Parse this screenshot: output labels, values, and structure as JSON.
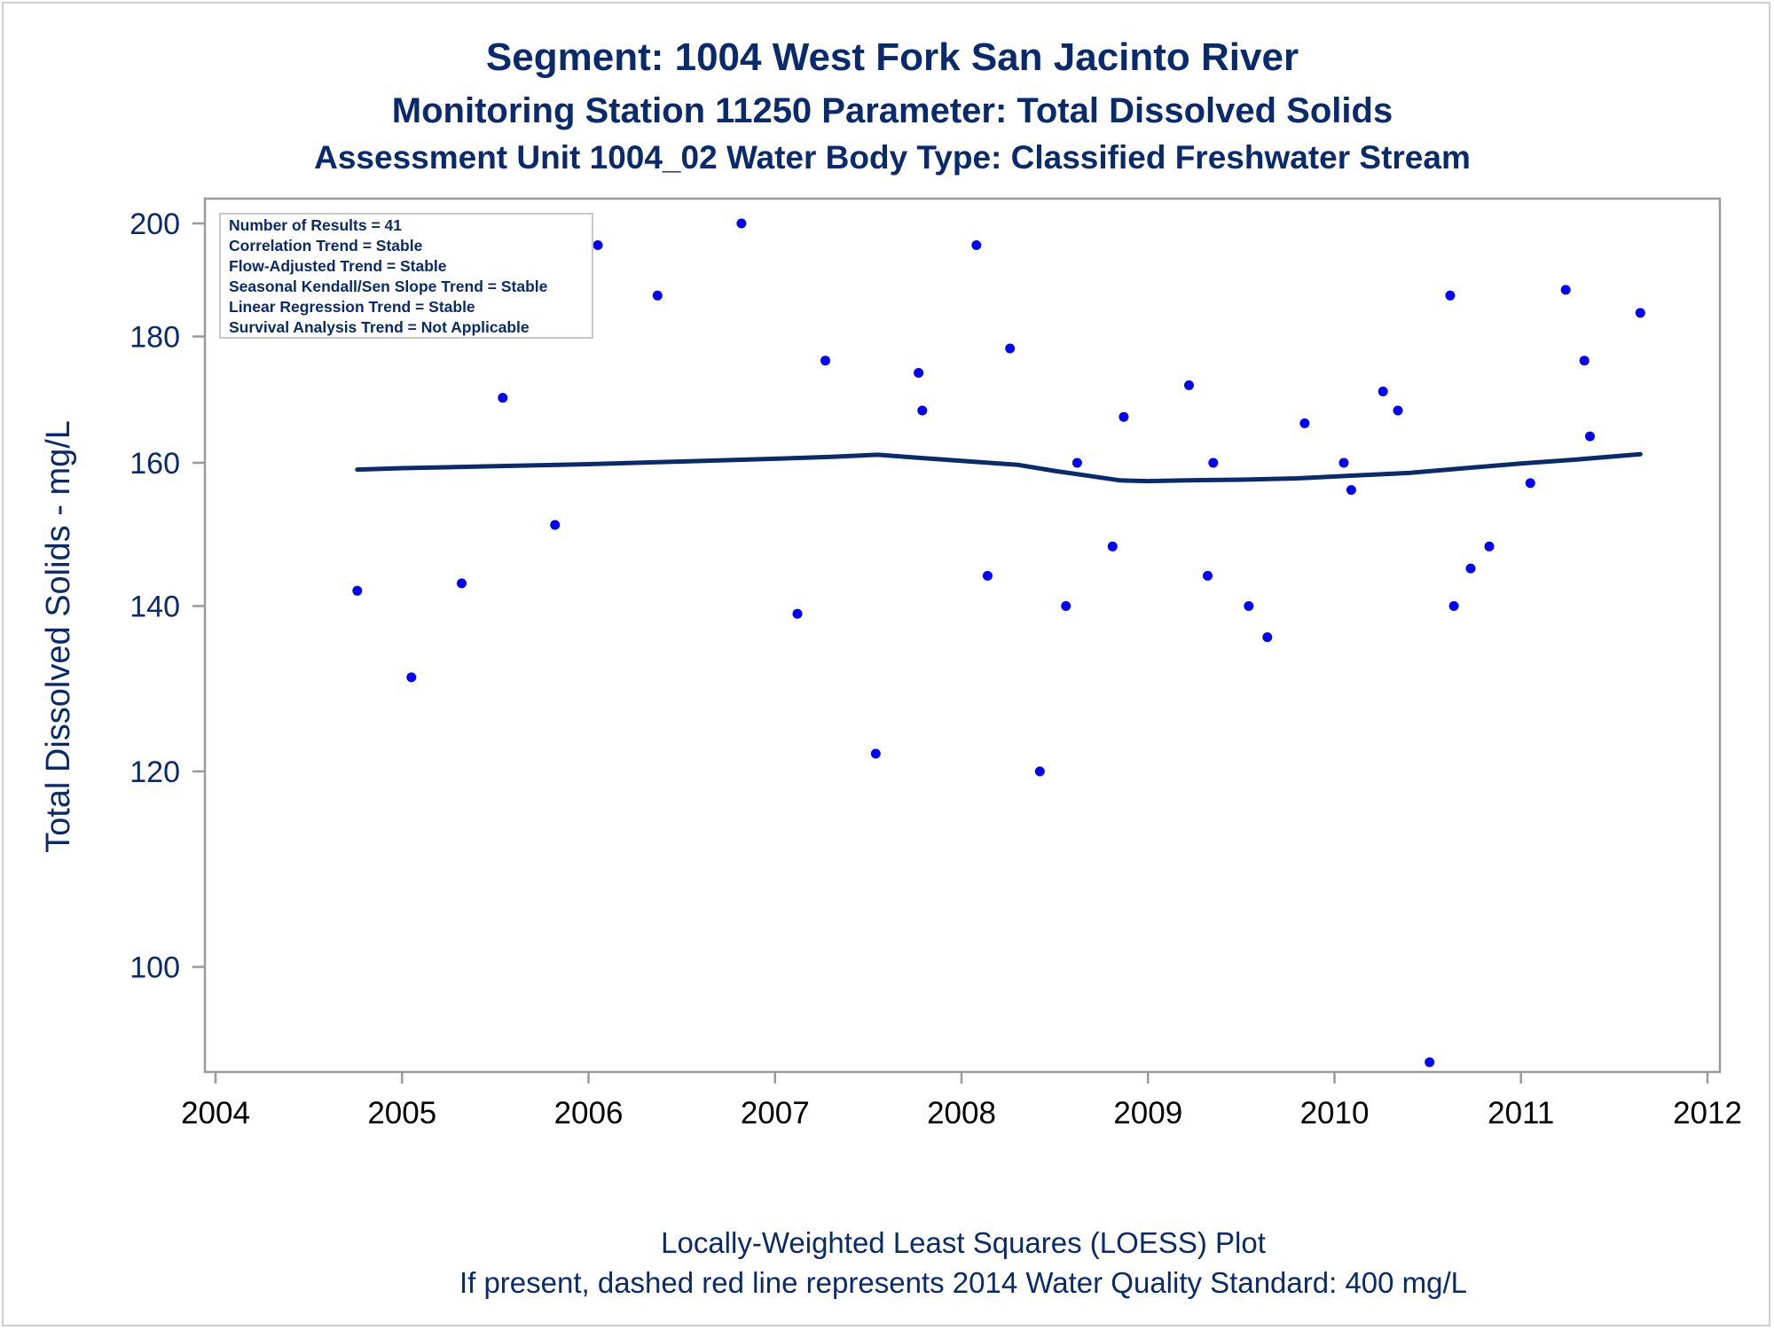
{
  "titles": {
    "line1": "Segment: 1004  West Fork San Jacinto River",
    "line2": "Monitoring Station 11250 Parameter: Total Dissolved Solids",
    "line3": "Assessment Unit 1004_02   Water Body Type: Classified Freshwater Stream"
  },
  "stats_box": [
    "Number of Results = 41",
    "Correlation Trend = Stable",
    "Flow-Adjusted Trend = Stable",
    "Seasonal Kendall/Sen Slope Trend = Stable",
    "Linear Regression Trend = Stable",
    "Survival Analysis Trend = Not Applicable"
  ],
  "footer": {
    "line1": "Locally-Weighted Least Squares (LOESS) Plot",
    "line2": "If present, dashed red line represents 2014 Water Quality Standard: 400   mg/L"
  },
  "colors": {
    "text": "#0a2a6e",
    "points": "#0000ff",
    "loess": "#0a2a6e",
    "axis": "#9a9a9a"
  },
  "chart_data": {
    "type": "scatter",
    "ylabel": "Total Dissolved Solids - mg/L",
    "xlabel": "",
    "y_scale": "log",
    "xlim": [
      2004,
      2012
    ],
    "ylim": [
      91.5,
      202
    ],
    "x_ticks": [
      2004,
      2005,
      2006,
      2007,
      2008,
      2009,
      2010,
      2011,
      2012
    ],
    "y_ticks": [
      100,
      120,
      140,
      160,
      180,
      200
    ],
    "grid": false,
    "series": [
      {
        "kind": "points",
        "x": [
          2004.76,
          2005.05,
          2005.32,
          2005.54,
          2005.82,
          2006.05,
          2006.37,
          2006.82,
          2007.12,
          2007.27,
          2007.54,
          2007.77,
          2007.79,
          2008.08,
          2008.14,
          2008.26,
          2008.42,
          2008.56,
          2008.62,
          2008.81,
          2008.87,
          2009.22,
          2009.32,
          2009.35,
          2009.54,
          2009.64,
          2009.84,
          2010.05,
          2010.09,
          2010.26,
          2010.34,
          2010.51,
          2010.62,
          2010.64,
          2010.73,
          2010.83,
          2011.05,
          2011.24,
          2011.34,
          2011.37,
          2011.64
        ],
        "y": [
          142,
          131,
          143,
          170,
          151,
          196,
          187,
          200,
          139,
          176,
          122,
          174,
          168,
          196,
          144,
          178,
          120,
          140,
          160,
          148,
          167,
          172,
          144,
          160,
          140,
          136,
          166,
          160,
          156,
          171,
          168,
          91.5,
          187,
          140,
          145,
          148,
          157,
          188,
          176,
          164,
          184
        ]
      },
      {
        "kind": "loess",
        "x": [
          2004.76,
          2005.0,
          2005.5,
          2006.0,
          2006.5,
          2007.0,
          2007.3,
          2007.55,
          2007.8,
          2008.1,
          2008.3,
          2008.5,
          2008.7,
          2008.85,
          2009.0,
          2009.2,
          2009.5,
          2009.8,
          2010.1,
          2010.4,
          2010.7,
          2011.0,
          2011.3,
          2011.64
        ],
        "y": [
          159.0,
          159.2,
          159.5,
          159.8,
          160.2,
          160.6,
          160.9,
          161.2,
          160.7,
          160.1,
          159.7,
          158.8,
          158.0,
          157.4,
          157.3,
          157.4,
          157.5,
          157.7,
          158.1,
          158.5,
          159.2,
          159.9,
          160.5,
          161.3
        ]
      }
    ]
  }
}
